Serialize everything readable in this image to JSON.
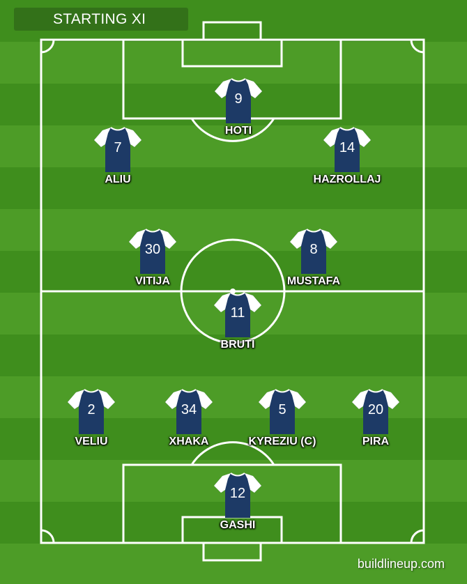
{
  "header": {
    "title": "STARTING XI"
  },
  "colors": {
    "pitch_dark": "#3f8e1d",
    "pitch_light": "#4d9c27",
    "shirt_body": "#1d3a66",
    "shirt_sleeves": "#ffffff",
    "lines": "#ffffff"
  },
  "lineup": {
    "forwards": [
      {
        "number": "9",
        "name": "HOTI"
      },
      {
        "number": "7",
        "name": "ALIU"
      },
      {
        "number": "14",
        "name": "HAZROLLAJ"
      }
    ],
    "midfield": [
      {
        "number": "30",
        "name": "VITIJA"
      },
      {
        "number": "8",
        "name": "MUSTAFA"
      },
      {
        "number": "11",
        "name": "BRUTI"
      }
    ],
    "defence": [
      {
        "number": "2",
        "name": "VELIU"
      },
      {
        "number": "34",
        "name": "XHAKA"
      },
      {
        "number": "5",
        "name": "KYREZIU (C)"
      },
      {
        "number": "20",
        "name": "PIRA"
      }
    ],
    "goalkeeper": {
      "number": "12",
      "name": "GASHI"
    }
  },
  "footer": {
    "watermark": "buildlineup.com"
  }
}
